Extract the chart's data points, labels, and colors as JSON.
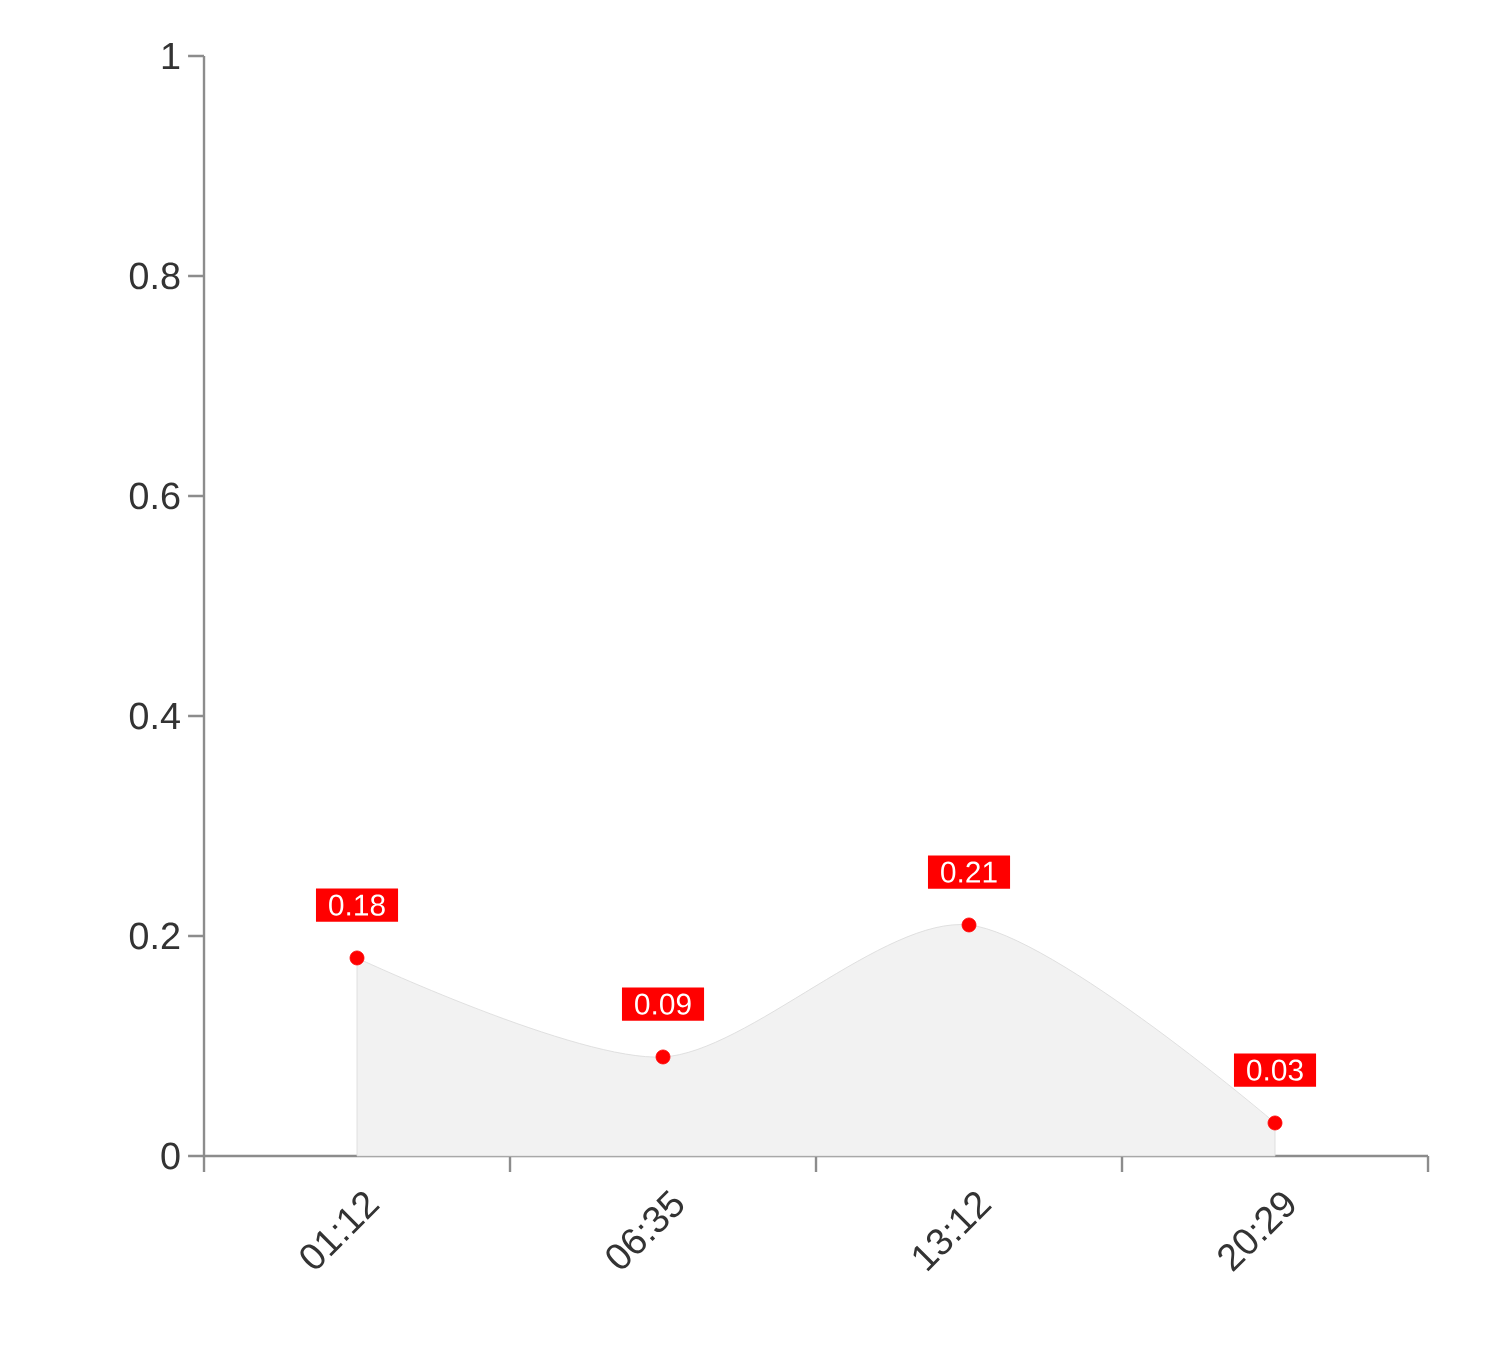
{
  "chart_data": {
    "type": "area",
    "categories": [
      "01:12",
      "06:35",
      "13:12",
      "20:29"
    ],
    "values": [
      0.18,
      0.09,
      0.21,
      0.03
    ],
    "color": "#f2f2f2",
    "ylim": [
      0,
      1
    ],
    "yticks": [
      0,
      0.2,
      0.4,
      0.6,
      0.8,
      1
    ],
    "grid": false,
    "marker": "circle",
    "data_labels": true
  }
}
